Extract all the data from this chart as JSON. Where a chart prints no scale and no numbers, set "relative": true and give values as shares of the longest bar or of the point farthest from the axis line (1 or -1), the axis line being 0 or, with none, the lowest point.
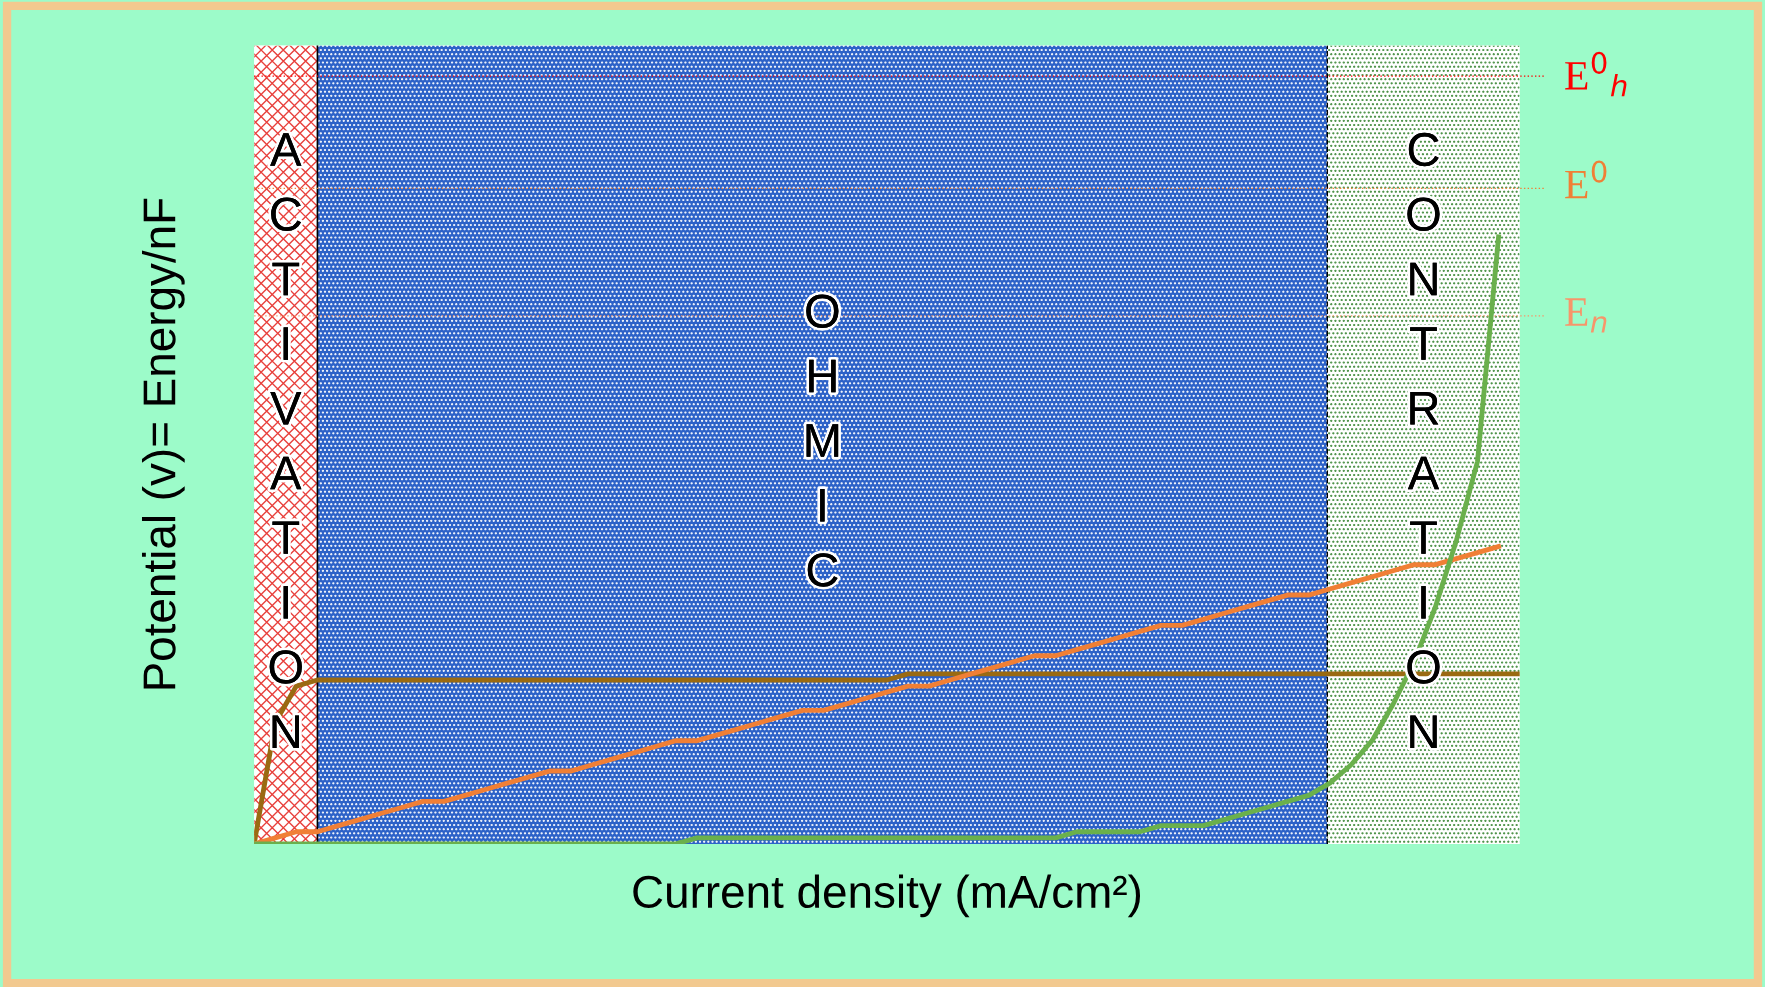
{
  "chart_data": {
    "type": "line",
    "relative": true,
    "xlabel": "Current density (mA/cm²)",
    "ylabel": "Potential (v)= Energy/nF",
    "categories": [
      null,
      null,
      null,
      null,
      null,
      null,
      null,
      null,
      null,
      null,
      null,
      null,
      null,
      null,
      null,
      null,
      null,
      null,
      null,
      null,
      null,
      null,
      null,
      null,
      null,
      null,
      null,
      null,
      null,
      null,
      null,
      null,
      null,
      null,
      null,
      null,
      null,
      null,
      null,
      null,
      null,
      null,
      null,
      null,
      null,
      null,
      null,
      null,
      null,
      null,
      null,
      null,
      null,
      null,
      null,
      null,
      null,
      null,
      null,
      null,
      null
    ],
    "series": [
      {
        "color": "#9a6a12",
        "values": [
          0,
          0.2,
          0.26,
          0.27,
          0.27,
          0.27,
          0.27,
          0.27,
          0.27,
          0.27,
          0.27,
          0.27,
          0.27,
          0.27,
          0.27,
          0.27,
          0.27,
          0.27,
          0.27,
          0.27,
          0.27,
          0.27,
          0.27,
          0.27,
          0.27,
          0.27,
          0.27,
          0.27,
          0.27,
          0.27,
          0.27,
          0.28,
          0.28,
          0.28,
          0.28,
          0.28,
          0.28,
          0.28,
          0.28,
          0.28,
          0.28,
          0.28,
          0.28,
          0.28,
          0.28,
          0.28,
          0.28,
          0.28,
          0.28,
          0.28,
          0.28,
          0.28,
          0.28,
          0.28,
          0.28,
          0.28,
          0.28,
          0.28,
          0.28,
          0.28,
          0.28
        ]
      },
      {
        "color": "#f07f35",
        "values": [
          0,
          0.01,
          0.02,
          0.02,
          0.03,
          0.04,
          0.05,
          0.06,
          0.07,
          0.07,
          0.08,
          0.09,
          0.1,
          0.11,
          0.12,
          0.12,
          0.13,
          0.14,
          0.15,
          0.16,
          0.17,
          0.17,
          0.18,
          0.19,
          0.2,
          0.21,
          0.22,
          0.22,
          0.23,
          0.24,
          0.25,
          0.26,
          0.26,
          0.27,
          0.28,
          0.29,
          0.3,
          0.31,
          0.31,
          0.32,
          0.33,
          0.34,
          0.35,
          0.36,
          0.36,
          0.37,
          0.38,
          0.39,
          0.4,
          0.41,
          0.41,
          0.42,
          0.43,
          0.44,
          0.45,
          0.46,
          0.46,
          0.47,
          0.48,
          0.49,
          null
        ]
      },
      {
        "color": "#6ab04c",
        "values": [
          0,
          0,
          0,
          0,
          0,
          0,
          0,
          0,
          0,
          0,
          0,
          0,
          0,
          0,
          0,
          0,
          0,
          0,
          0,
          0,
          0,
          0.01,
          0.01,
          0.01,
          0.01,
          0.01,
          0.01,
          0.01,
          0.01,
          0.01,
          0.01,
          0.01,
          0.01,
          0.01,
          0.01,
          0.01,
          0.01,
          0.01,
          0.01,
          0.02,
          0.02,
          0.02,
          0.02,
          0.03,
          0.03,
          0.03,
          0.04,
          0.05,
          0.06,
          0.07,
          0.08,
          0.1,
          0.13,
          0.17,
          0.23,
          0.3,
          0.39,
          0.5,
          0.63,
          1.0,
          null
        ]
      }
    ],
    "annotations": [
      "ACTIVATION",
      "OHMIC",
      "CONTRATION"
    ],
    "ref_lines": [
      {
        "axis": "y",
        "value": 1.265,
        "label": "E$^{0}$$_{h}$",
        "color": "#ff0000",
        "line_style": "dotted"
      },
      {
        "axis": "y",
        "value": 1.08,
        "label": "E$^{0}$",
        "color": "#f07f35",
        "line_style": "dotted"
      },
      {
        "axis": "y",
        "value": 0.87,
        "label": "E$_{n}$",
        "color": "#f7956a",
        "line_style": "dotted"
      }
    ]
  }
}
